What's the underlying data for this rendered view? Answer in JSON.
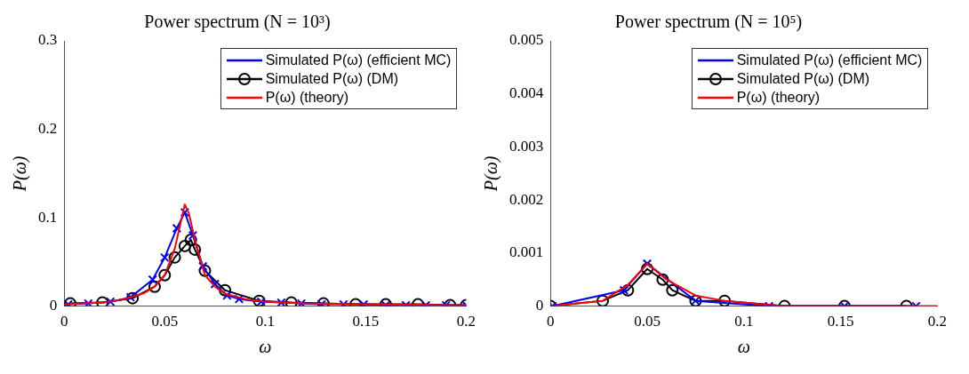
{
  "chart_data": [
    {
      "type": "line",
      "title": "Power spectrum (N = 10³)",
      "xlabel": "ω",
      "ylabel": "P(ω)",
      "xlim": [
        0,
        0.2
      ],
      "xticks": [
        0,
        0.05,
        0.1,
        0.15,
        0.2
      ],
      "ylim": [
        0,
        0.3
      ],
      "yticks": [
        0,
        0.1,
        0.2,
        0.3
      ],
      "grid": false,
      "legend": "top right",
      "series": [
        {
          "name": "Simulated P(ω) (efficient MC)",
          "color": "#0000ff",
          "marker": "cross",
          "x": [
            0.002,
            0.012,
            0.023,
            0.033,
            0.044,
            0.05,
            0.056,
            0.06,
            0.064,
            0.069,
            0.075,
            0.081,
            0.087,
            0.098,
            0.108,
            0.118,
            0.128,
            0.139,
            0.149,
            0.16,
            0.17,
            0.18,
            0.19,
            0.2
          ],
          "values": [
            0.002,
            0.003,
            0.005,
            0.01,
            0.03,
            0.055,
            0.088,
            0.106,
            0.08,
            0.045,
            0.025,
            0.012,
            0.008,
            0.005,
            0.004,
            0.003,
            0.002,
            0.002,
            0.002,
            0.001,
            0.001,
            0.001,
            0.001,
            0.001
          ]
        },
        {
          "name": "Simulated P(ω) (DM)",
          "color": "#000000",
          "marker": "circle",
          "x": [
            0.003,
            0.019,
            0.034,
            0.045,
            0.05,
            0.055,
            0.06,
            0.063,
            0.065,
            0.07,
            0.08,
            0.097,
            0.113,
            0.129,
            0.145,
            0.16,
            0.176,
            0.192,
            0.2
          ],
          "values": [
            0.003,
            0.004,
            0.009,
            0.022,
            0.035,
            0.055,
            0.068,
            0.075,
            0.064,
            0.04,
            0.018,
            0.006,
            0.004,
            0.003,
            0.002,
            0.002,
            0.002,
            0.001,
            0.001
          ]
        },
        {
          "name": "P(ω) (theory)",
          "color": "#ff0000",
          "marker": "none",
          "x": [
            0,
            0.02,
            0.03,
            0.04,
            0.045,
            0.05,
            0.055,
            0.058,
            0.06,
            0.062,
            0.065,
            0.07,
            0.075,
            0.08,
            0.09,
            0.1,
            0.12,
            0.15,
            0.2
          ],
          "values": [
            0.002,
            0.004,
            0.008,
            0.015,
            0.022,
            0.035,
            0.065,
            0.095,
            0.115,
            0.105,
            0.075,
            0.035,
            0.022,
            0.014,
            0.008,
            0.005,
            0.003,
            0.002,
            0.001
          ]
        }
      ]
    },
    {
      "type": "line",
      "title": "Power spectrum (N = 10⁵)",
      "xlabel": "ω",
      "ylabel": "P(ω)",
      "xlim": [
        0,
        0.2
      ],
      "xticks": [
        0,
        0.05,
        0.1,
        0.15,
        0.2
      ],
      "ylim": [
        0,
        0.005
      ],
      "yticks": [
        0,
        0.001,
        0.002,
        0.003,
        0.004,
        0.005
      ],
      "grid": false,
      "legend": "top right",
      "series": [
        {
          "name": "Simulated P(ω) (efficient MC)",
          "color": "#0000ff",
          "marker": "cross",
          "x": [
            0.001,
            0.038,
            0.05,
            0.075,
            0.113,
            0.152,
            0.189
          ],
          "values": [
            0,
            0.0003,
            0.0008,
            0.0001,
            0,
            0,
            0
          ]
        },
        {
          "name": "Simulated P(ω) (DM)",
          "color": "#000000",
          "marker": "circle",
          "x": [
            0,
            0.027,
            0.04,
            0.05,
            0.058,
            0.063,
            0.075,
            0.09,
            0.121,
            0.152,
            0.184
          ],
          "values": [
            0,
            0.0001,
            0.0003,
            0.0007,
            0.0005,
            0.0003,
            0.0001,
            0.0001,
            0,
            0,
            0
          ]
        },
        {
          "name": "P(ω) (theory)",
          "color": "#ff0000",
          "marker": "none",
          "x": [
            0,
            0.027,
            0.04,
            0.05,
            0.06,
            0.075,
            0.09,
            0.12,
            0.2
          ],
          "values": [
            0,
            0.0001,
            0.0004,
            0.0008,
            0.0005,
            0.0002,
            0.0001,
            0,
            0
          ]
        }
      ]
    }
  ]
}
